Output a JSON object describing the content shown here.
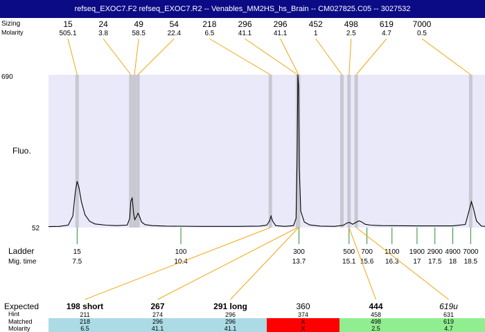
{
  "title": "refseq_EXOC7.F2  refseq_EXOC7.R2 -- Venables_MM2HS_hs_Brain -- CM027825.C05 -- 3027532",
  "labels": {
    "sizing": "Sizing",
    "molarity_top": "Molarity",
    "fluo": "Fluo.",
    "ladder": "Ladder",
    "mig_time": "Mig. time",
    "expected": "Expected",
    "hint": "Hint",
    "matched": "Matched",
    "molarity_bottom": "Molarity"
  },
  "colors": {
    "title_bg": "#0b0b86",
    "plot_bg": "#e9e9fa",
    "peak_band": "#c8c8d2",
    "callout_line": "#f2a50f",
    "ladder_tick": "#2e8b2e",
    "trace": "#000000",
    "row_blue": "#acdbe6",
    "row_red": "#ff0000",
    "row_green": "#90ee90"
  },
  "chart_data": {
    "type": "line",
    "y_axis": {
      "min_label": "52",
      "max_label": "690",
      "min": 52,
      "max": 690,
      "label": "Fluo."
    },
    "x_axis": {
      "label": "Mig. time",
      "range": [
        6.7,
        18.9
      ]
    },
    "peaks": [
      {
        "size": "15",
        "molarity": "505.1",
        "time": 7.5
      },
      {
        "size": "24",
        "molarity": "3.8",
        "time": 9.0
      },
      {
        "size": "49",
        "molarity": "58.5",
        "time": 9.1
      },
      {
        "size": "54",
        "molarity": "22.4",
        "time": 9.2
      },
      {
        "size": "218",
        "molarity": "6.5",
        "time": 12.9
      },
      {
        "size": "296",
        "molarity": "41.1",
        "time": 13.66
      },
      {
        "size": "296",
        "molarity": "41.1",
        "time": 13.69
      },
      {
        "size": "452",
        "molarity": "1",
        "time": 14.9
      },
      {
        "size": "498",
        "molarity": "2.5",
        "time": 15.1
      },
      {
        "size": "619",
        "molarity": "4.7",
        "time": 15.3
      },
      {
        "size": "7000",
        "molarity": "0.5",
        "time": 18.5
      }
    ],
    "ladder": [
      {
        "size": "15",
        "time": "7.5",
        "t": 7.5
      },
      {
        "size": "100",
        "time": "10.4",
        "t": 10.4
      },
      {
        "size": "300",
        "time": "13.7",
        "t": 13.7
      },
      {
        "size": "500",
        "time": "15.1",
        "t": 15.1
      },
      {
        "size": "700",
        "time": "15.6",
        "t": 15.6
      },
      {
        "size": "1100",
        "time": "16.3",
        "t": 16.3
      },
      {
        "size": "1900",
        "time": "17",
        "t": 17.0
      },
      {
        "size": "2900",
        "time": "17.5",
        "t": 17.5
      },
      {
        "size": "4900",
        "time": "18",
        "t": 18.0
      },
      {
        "size": "7000",
        "time": "18.5",
        "t": 18.5
      }
    ],
    "trace": [
      [
        6.7,
        56
      ],
      [
        7.0,
        57
      ],
      [
        7.25,
        62
      ],
      [
        7.38,
        100
      ],
      [
        7.45,
        200
      ],
      [
        7.5,
        245
      ],
      [
        7.55,
        220
      ],
      [
        7.62,
        160
      ],
      [
        7.72,
        105
      ],
      [
        7.85,
        78
      ],
      [
        8.0,
        67
      ],
      [
        8.3,
        62
      ],
      [
        8.6,
        60
      ],
      [
        8.9,
        62
      ],
      [
        8.97,
        90
      ],
      [
        9.0,
        162
      ],
      [
        9.04,
        175
      ],
      [
        9.08,
        110
      ],
      [
        9.11,
        85
      ],
      [
        9.17,
        100
      ],
      [
        9.2,
        112
      ],
      [
        9.24,
        100
      ],
      [
        9.3,
        75
      ],
      [
        9.4,
        64
      ],
      [
        9.6,
        60
      ],
      [
        10.0,
        58
      ],
      [
        11.0,
        57
      ],
      [
        12.0,
        57
      ],
      [
        12.6,
        58
      ],
      [
        12.8,
        62
      ],
      [
        12.88,
        80
      ],
      [
        12.92,
        100
      ],
      [
        12.96,
        80
      ],
      [
        13.05,
        60
      ],
      [
        13.3,
        57
      ],
      [
        13.55,
        60
      ],
      [
        13.62,
        90
      ],
      [
        13.65,
        350
      ],
      [
        13.67,
        690
      ],
      [
        13.69,
        640
      ],
      [
        13.71,
        300
      ],
      [
        13.75,
        120
      ],
      [
        13.85,
        75
      ],
      [
        14.0,
        63
      ],
      [
        14.3,
        58
      ],
      [
        14.7,
        57
      ],
      [
        14.95,
        62
      ],
      [
        15.05,
        72
      ],
      [
        15.12,
        73
      ],
      [
        15.2,
        66
      ],
      [
        15.3,
        74
      ],
      [
        15.38,
        80
      ],
      [
        15.45,
        76
      ],
      [
        15.55,
        66
      ],
      [
        15.7,
        62
      ],
      [
        16.0,
        60
      ],
      [
        17.0,
        59
      ],
      [
        18.0,
        59
      ],
      [
        18.35,
        65
      ],
      [
        18.45,
        120
      ],
      [
        18.52,
        160
      ],
      [
        18.58,
        130
      ],
      [
        18.66,
        80
      ],
      [
        18.8,
        58
      ],
      [
        18.9,
        57
      ]
    ]
  },
  "results": [
    {
      "expected": "198 short",
      "hint": "211",
      "matched": "218",
      "molarity": "6.5",
      "color": "#acdbe6",
      "style": "bold"
    },
    {
      "expected": "267",
      "hint": "274",
      "matched": "296",
      "molarity": "41.1",
      "color": "#acdbe6",
      "style": "bold"
    },
    {
      "expected": "291 long",
      "hint": "296",
      "matched": "296",
      "molarity": "41.1",
      "color": "#acdbe6",
      "style": "bold"
    },
    {
      "expected": "360",
      "hint": "374",
      "matched": "X",
      "molarity": "X",
      "color": "#ff0000",
      "style": "normal"
    },
    {
      "expected": "444",
      "hint": "458",
      "matched": "498",
      "molarity": "2.5",
      "color": "#90ee90",
      "style": "bold"
    },
    {
      "expected": "619u",
      "hint": "631",
      "matched": "619",
      "molarity": "4.7",
      "color": "#90ee90",
      "style": "italic"
    }
  ]
}
